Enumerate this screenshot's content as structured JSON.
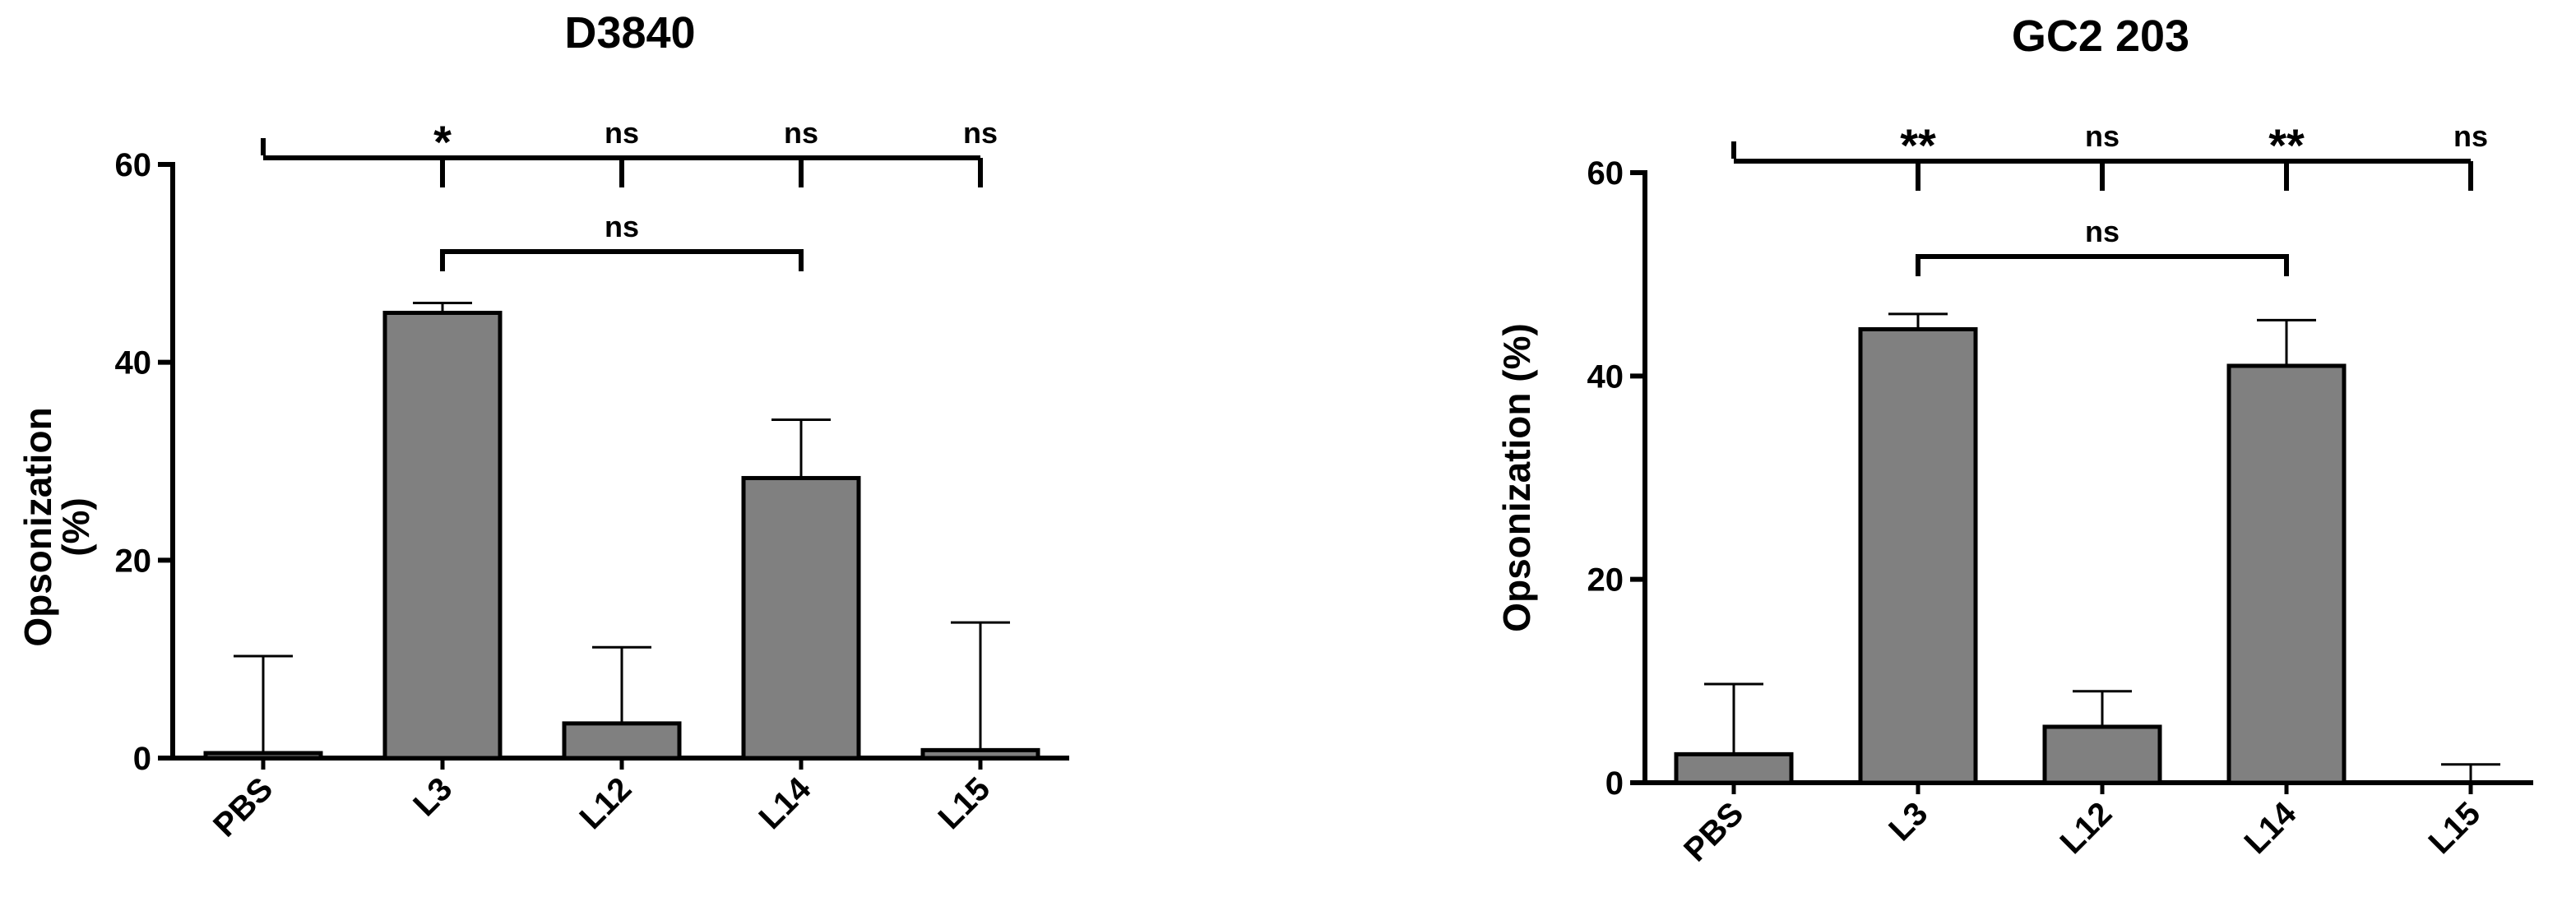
{
  "chart_data": [
    {
      "type": "bar",
      "title": "D3840",
      "ylabel": [
        "Opsonization",
        "(%)"
      ],
      "categories": [
        "PBS",
        "L3",
        "L12",
        "L14",
        "L15"
      ],
      "values": [
        0.5,
        45,
        3.5,
        28.3,
        0.8
      ],
      "errors": [
        9.8,
        1,
        7.7,
        5.9,
        12.9
      ],
      "color": "#808080",
      "ylim": [
        0,
        60
      ],
      "yticks": [
        0,
        20,
        40,
        60
      ],
      "annotations": {
        "vs_PBS": [
          "*",
          "ns",
          "ns",
          "ns"
        ],
        "L3_vs_L14": "ns"
      }
    },
    {
      "type": "bar",
      "title": "GC2 203",
      "ylabel": "Opsonization (%)",
      "categories": [
        "PBS",
        "L3",
        "L12",
        "L14",
        "L15"
      ],
      "values": [
        2.8,
        44.6,
        5.5,
        41,
        0
      ],
      "errors": [
        6.9,
        1.5,
        3.5,
        4.5,
        1.8
      ],
      "color": "#808080",
      "ylim": [
        0,
        60
      ],
      "yticks": [
        0,
        20,
        40,
        60
      ],
      "annotations": {
        "vs_PBS": [
          "**",
          "ns",
          "**",
          "ns"
        ],
        "L3_vs_L14": "ns"
      }
    }
  ]
}
